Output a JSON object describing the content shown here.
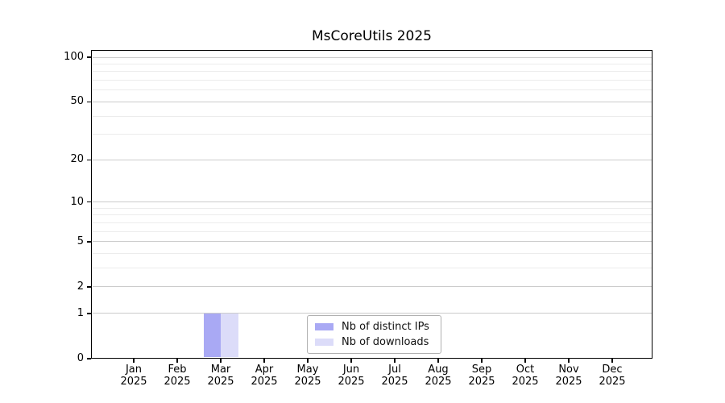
{
  "chart_data": {
    "type": "bar",
    "title": "MsCoreUtils 2025",
    "categories": [
      "Jan 2025",
      "Feb 2025",
      "Mar 2025",
      "Apr 2025",
      "May 2025",
      "Jun 2025",
      "Jul 2025",
      "Aug 2025",
      "Sep 2025",
      "Oct 2025",
      "Nov 2025",
      "Dec 2025"
    ],
    "series": [
      {
        "name": "Nb of distinct IPs",
        "color": "#a9a9f4",
        "values": [
          0,
          0,
          1,
          0,
          0,
          0,
          0,
          0,
          0,
          0,
          0,
          0
        ]
      },
      {
        "name": "Nb of downloads",
        "color": "#dcdcf9",
        "values": [
          0,
          0,
          1,
          0,
          0,
          0,
          0,
          0,
          0,
          0,
          0,
          0
        ]
      }
    ],
    "xlabel": "",
    "ylabel": "",
    "yscale": "log1p",
    "ylim": [
      0,
      112
    ],
    "y_major_ticks": [
      100,
      50,
      20,
      10,
      5,
      2,
      1,
      0
    ],
    "y_minor_gridlines": [
      90,
      80,
      70,
      60,
      40,
      30,
      9,
      8,
      7,
      6,
      4,
      3
    ],
    "grid": "horizontal",
    "legend": {
      "position": "inside-bottom-center",
      "entries": [
        {
          "label": "Nb of distinct IPs",
          "color": "#a9a9f4"
        },
        {
          "label": "Nb of downloads",
          "color": "#dcdcf9"
        }
      ]
    },
    "colors": {
      "major_gridline": "#cccccc",
      "minor_gridline": "#ececec",
      "axis": "#000000",
      "background": "#ffffff",
      "legend_border": "#b0b0b0"
    }
  }
}
